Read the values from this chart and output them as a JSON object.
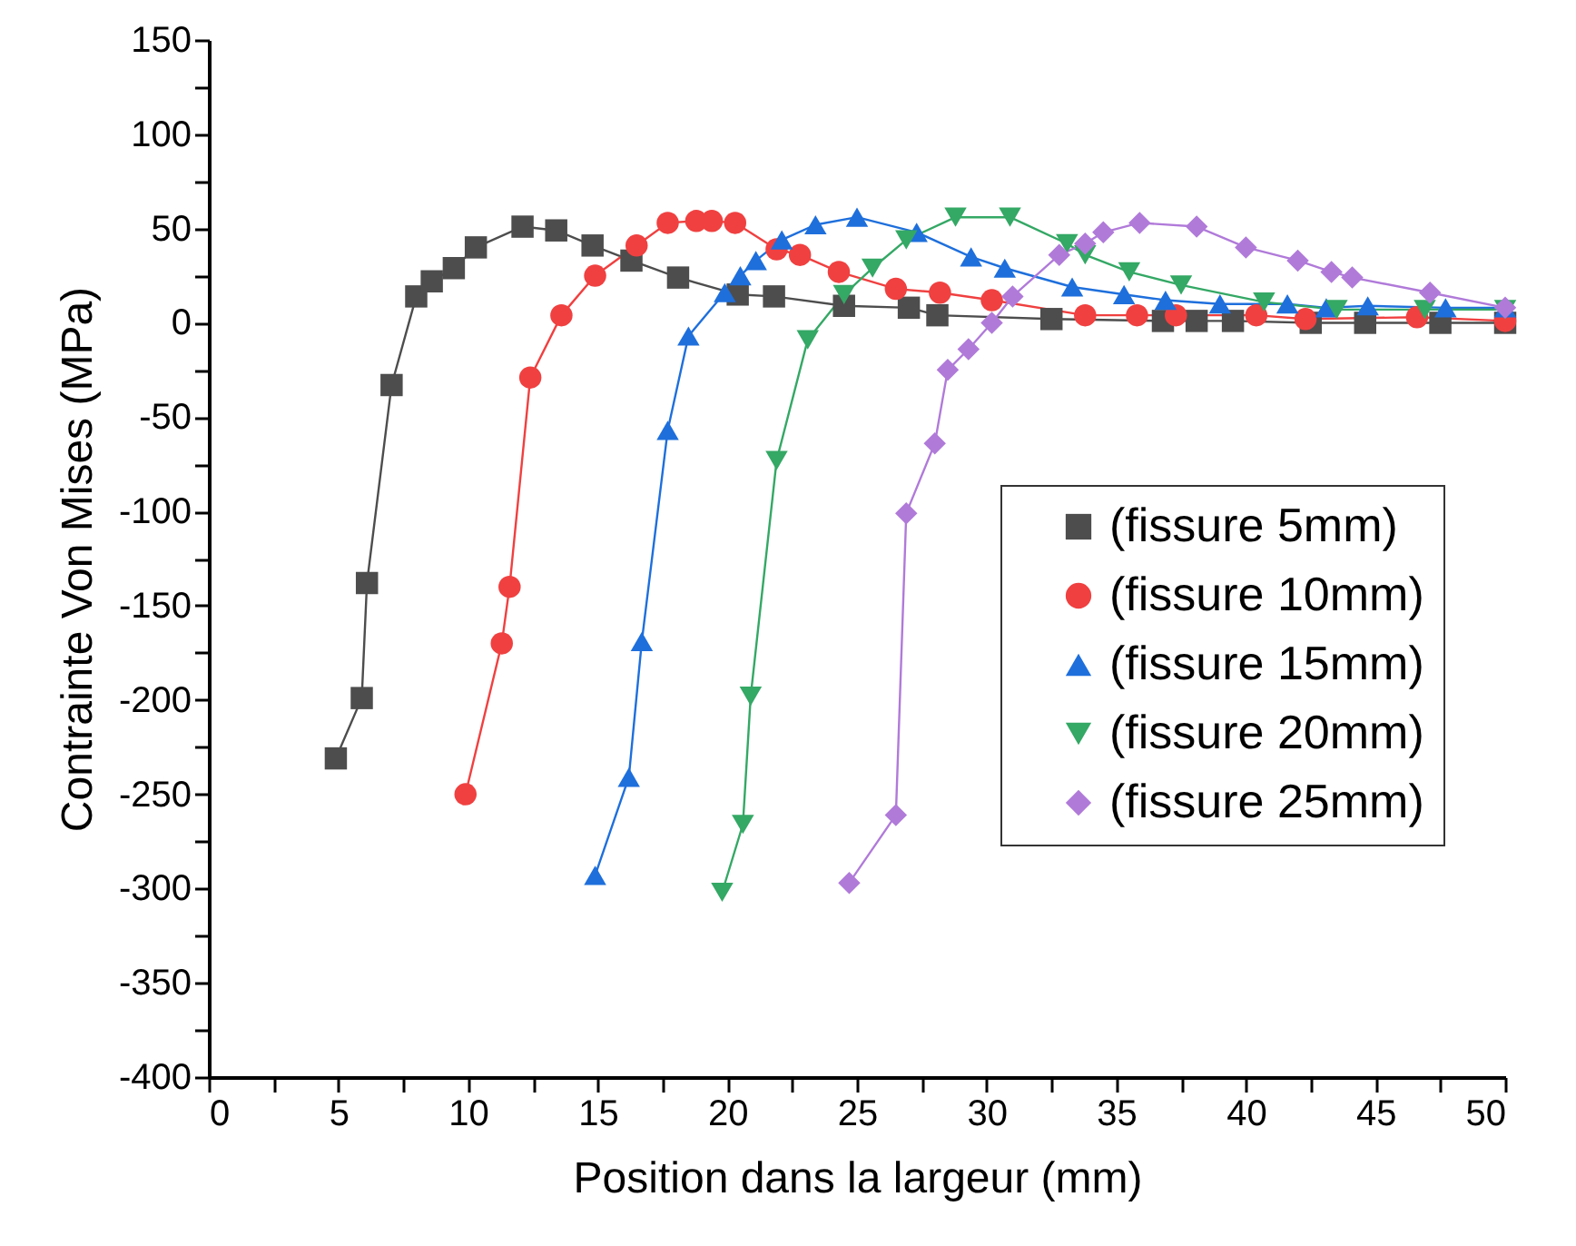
{
  "chart_data": {
    "type": "line",
    "xlabel": "Position dans la largeur (mm)",
    "ylabel": "Contrainte Von Mises (MPa)",
    "xlim": [
      0,
      50
    ],
    "ylim": [
      -400,
      150
    ],
    "xticks": [
      0,
      {
        "value": 2.5,
        "label": null
      },
      5,
      {
        "value": 7.5,
        "label": null
      },
      10,
      {
        "value": 12.5,
        "label": null
      },
      15,
      {
        "value": 17.5,
        "label": null
      },
      20,
      {
        "value": 22.5,
        "label": null
      },
      25,
      {
        "value": 27.5,
        "label": null
      },
      30,
      {
        "value": 32.5,
        "label": null
      },
      35,
      {
        "value": 37.5,
        "label": null
      },
      40,
      {
        "value": 42.5,
        "label": null
      },
      45,
      {
        "value": 47.5,
        "label": null
      },
      50
    ],
    "yticks": [
      -400,
      {
        "value": -375,
        "label": null
      },
      -350,
      {
        "value": -325,
        "label": null
      },
      -300,
      {
        "value": -275,
        "label": null
      },
      -250,
      {
        "value": -225,
        "label": null
      },
      -200,
      {
        "value": -175,
        "label": null
      },
      -150,
      {
        "value": -125,
        "label": null
      },
      -100,
      {
        "value": -75,
        "label": null
      },
      -50,
      {
        "value": -25,
        "label": null
      },
      0,
      {
        "value": 25,
        "label": null
      },
      50,
      {
        "value": 75,
        "label": null
      },
      100,
      {
        "value": 125,
        "label": null
      },
      150
    ],
    "grid": false,
    "legend": "right",
    "line_style": "solid",
    "series": [
      {
        "name": "(fissure 5mm)",
        "color": "#4d4d4d",
        "marker": "square",
        "x": [
          4.9,
          5.9,
          6.1,
          7.05,
          8.0,
          8.6,
          9.45,
          10.3,
          12.1,
          13.4,
          14.8,
          16.3,
          18.1,
          20.4,
          21.8,
          24.5,
          27.0,
          28.1,
          32.5,
          36.8,
          38.1,
          39.5,
          42.5,
          44.6,
          47.5,
          50
        ],
        "values": [
          -231,
          -199,
          -138,
          -33,
          14,
          22,
          29,
          40,
          51,
          49,
          41,
          33,
          24,
          15,
          14,
          9,
          8,
          4,
          2,
          1,
          1,
          1,
          0,
          0,
          0,
          0
        ]
      },
      {
        "name": "(fissure 10mm)",
        "color": "#f04040",
        "marker": "circle",
        "x": [
          9.9,
          11.3,
          11.6,
          12.4,
          13.6,
          14.9,
          16.5,
          17.7,
          18.8,
          19.4,
          20.3,
          21.9,
          22.8,
          24.3,
          26.5,
          28.2,
          30.2,
          33.8,
          35.8,
          37.3,
          40.4,
          42.3,
          46.6,
          50
        ],
        "values": [
          -250,
          -170,
          -140,
          -29,
          4,
          25,
          41,
          53,
          54,
          54,
          53,
          39,
          36,
          27,
          18,
          16,
          12,
          4,
          4,
          4,
          4,
          2,
          3,
          1
        ]
      },
      {
        "name": "(fissure 15mm)",
        "color": "#1e6fdc",
        "marker": "triangle",
        "x": [
          14.9,
          16.2,
          16.7,
          17.7,
          18.5,
          19.9,
          20.5,
          21.1,
          22.1,
          23.4,
          25.0,
          27.3,
          29.4,
          30.7,
          33.3,
          35.3,
          36.9,
          39.0,
          41.6,
          43.1,
          44.7,
          47.7,
          50
        ],
        "values": [
          -293,
          -241,
          -169,
          -57,
          -7,
          16,
          25,
          33,
          44,
          52,
          56,
          48,
          35,
          29,
          19,
          15,
          12,
          10,
          10,
          8,
          9,
          8,
          8
        ]
      },
      {
        "name": "(fissure 20mm)",
        "color": "#34a865",
        "marker": "triangle-down",
        "x": [
          19.8,
          20.6,
          20.9,
          21.9,
          23.1,
          24.5,
          25.6,
          26.9,
          28.8,
          30.9,
          33.1,
          33.8,
          35.5,
          37.5,
          40.7,
          43.5,
          46.9,
          50
        ],
        "values": [
          -302,
          -266,
          -198,
          -73,
          -9,
          15,
          29,
          44,
          56,
          56,
          42,
          36,
          27,
          20,
          11,
          7,
          7,
          7
        ]
      },
      {
        "name": "(fissure 25mm)",
        "color": "#b07ad9",
        "marker": "diamond",
        "x": [
          24.7,
          26.5,
          26.9,
          28.0,
          28.5,
          29.3,
          30.2,
          31.0,
          32.8,
          33.8,
          34.5,
          35.9,
          38.1,
          40.0,
          42.0,
          43.3,
          44.1,
          47.1,
          50
        ],
        "values": [
          -297,
          -261,
          -101,
          -64,
          -25,
          -14,
          0,
          14,
          36,
          42,
          48,
          53,
          51,
          40,
          33,
          27,
          24,
          16,
          8
        ]
      }
    ]
  }
}
